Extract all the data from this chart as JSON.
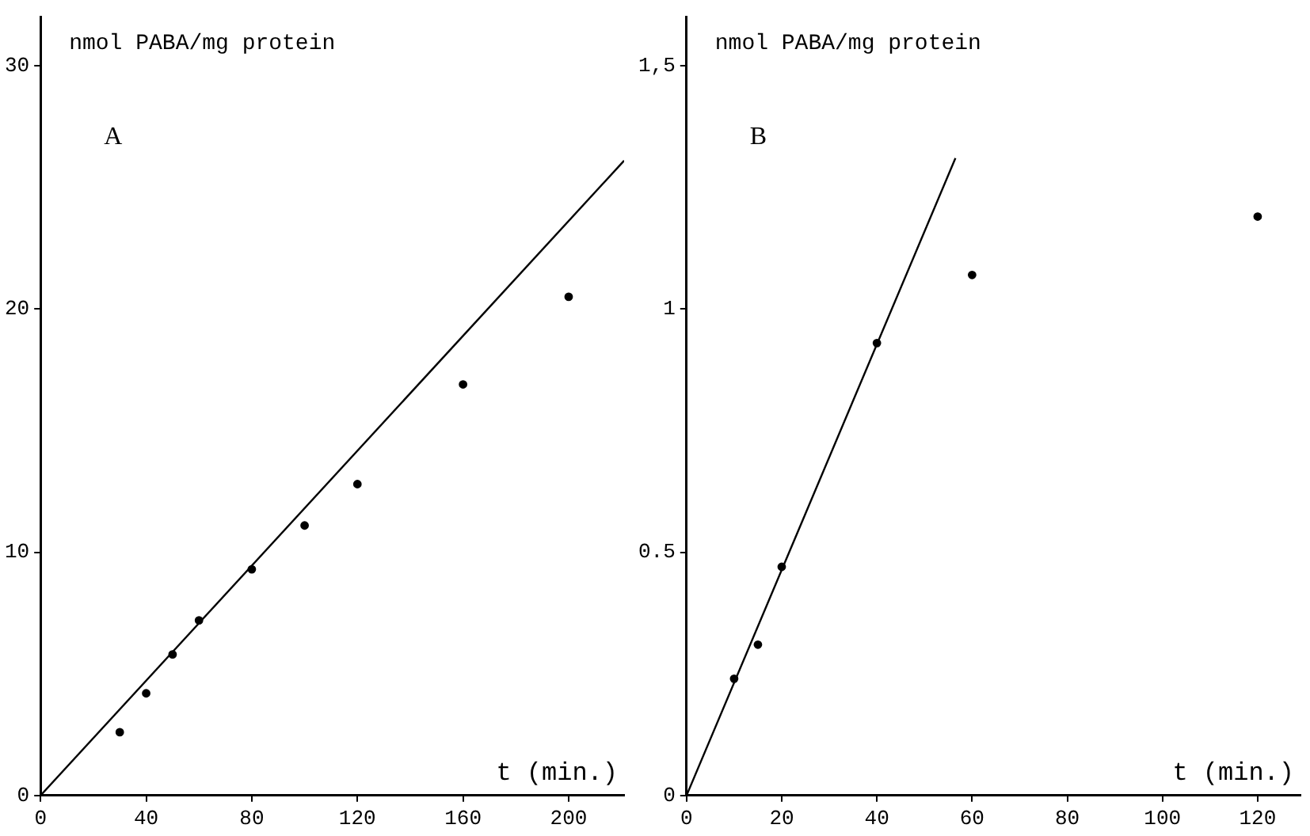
{
  "chart_data": [
    {
      "type": "scatter",
      "ylabel": "nmol PABA/mg protein",
      "xlabel": "t (min.)",
      "annotations": [
        "A"
      ],
      "xlim": [
        0,
        221
      ],
      "xticks": [
        0,
        40,
        80,
        120,
        160,
        200
      ],
      "ylim": [
        0,
        32
      ],
      "yticks": [
        0,
        10,
        20,
        30
      ],
      "grid": false,
      "legend": false,
      "marker": "circle",
      "series": [
        {
          "type": "scatter",
          "color": "#000000",
          "x": [
            30,
            40,
            50,
            60,
            80,
            100,
            120,
            160,
            200
          ],
          "values": [
            2.6,
            4.2,
            5.8,
            7.2,
            9.3,
            11.1,
            12.8,
            16.9,
            20.5
          ]
        },
        {
          "type": "line",
          "color": "#000000",
          "marker": "none",
          "line_style": "solid",
          "x": [
            0,
            221
          ],
          "values": [
            0,
            26.1
          ]
        }
      ]
    },
    {
      "type": "scatter",
      "ylabel": "nmol PABA/mg protein",
      "xlabel": "t (min.)",
      "annotations": [
        "B"
      ],
      "xlim": [
        0,
        129
      ],
      "xticks": [
        0,
        20,
        40,
        60,
        80,
        100,
        120
      ],
      "ylim": [
        0,
        1.6
      ],
      "yticks": [
        0,
        0.5,
        1,
        {
          "value": 1.5,
          "label": "1,5"
        }
      ],
      "grid": false,
      "legend": false,
      "marker": "circle",
      "series": [
        {
          "type": "scatter",
          "color": "#000000",
          "x": [
            10,
            15,
            20,
            40,
            60,
            120
          ],
          "values": [
            0.24,
            0.31,
            0.47,
            0.93,
            1.07,
            1.19
          ]
        },
        {
          "type": "line",
          "color": "#000000",
          "marker": "none",
          "line_style": "solid",
          "x": [
            0,
            56.5
          ],
          "values": [
            0,
            1.31
          ]
        }
      ]
    }
  ]
}
